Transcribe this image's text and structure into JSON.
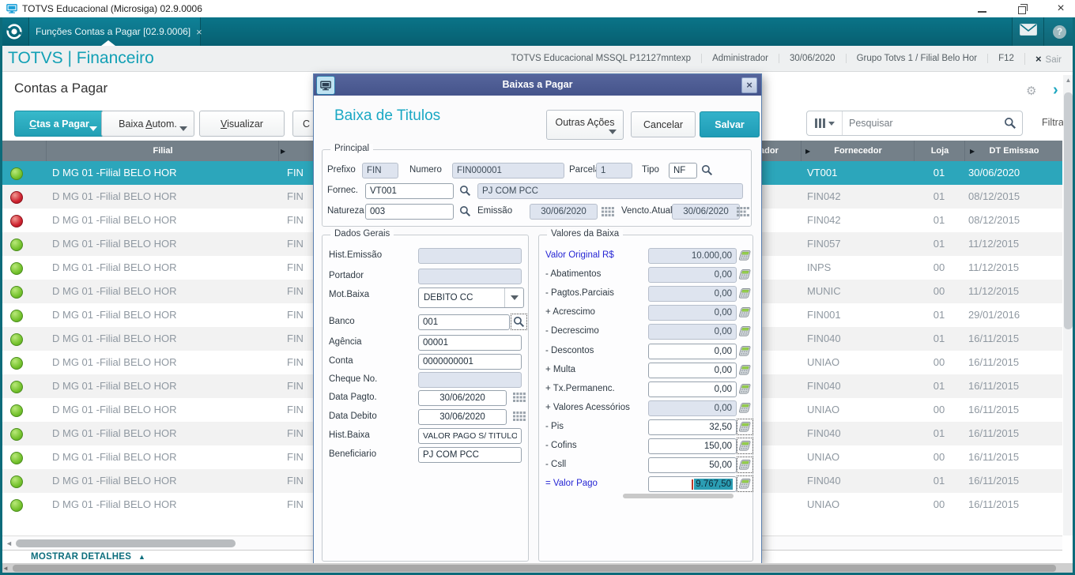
{
  "colors": {
    "accent_teal": "#2aa9bf",
    "tabbar_teal": "#086678",
    "dialog_titlebar": "#4c5c93",
    "row_selected": "#2ca6bb",
    "status_green": "#76c32e",
    "status_red": "#cf2330",
    "link_blue": "#2626d4"
  },
  "window": {
    "title": "TOTVS Educacional (Microsiga) 02.9.0006",
    "close_glyph": "×"
  },
  "tabbar": {
    "tab_label": "Funções Contas a Pagar [02.9.0006]",
    "tab_close": "×"
  },
  "header": {
    "brand": "TOTVS | Financeiro",
    "env": "TOTVS Educacional MSSQL P12127mntexp",
    "user": "Administrador",
    "date": "30/06/2020",
    "group": "Grupo Totvs 1 / Filial Belo Hor",
    "f12": "F12",
    "exit_x": "×",
    "exit": "Sair"
  },
  "toolbar": {
    "page_title": "Contas a Pagar",
    "btn_ctas": "Ctas a Pagar",
    "btn_baixa": "Baixa Autom.",
    "btn_visualizar": "Visualizar",
    "btn_partial": "C",
    "search_placeholder": "Pesquisar",
    "filter_label": "Filtrar",
    "gear_glyph": "⚙",
    "chevron_glyph": "›"
  },
  "table": {
    "col_filial": "Filial",
    "col_portador_partial": "ador",
    "col_fornecedor": "Fornecedor",
    "col_loja": "Loja",
    "col_dt_emissao": "DT Emissao",
    "sort_glyph": "▶",
    "rows": [
      {
        "status": "green",
        "selected": true,
        "filial": "D MG 01 -Filial BELO HOR",
        "prefixo": "FIN",
        "fornecedor": "VT001",
        "loja": "01",
        "dt_emissao": "30/06/2020"
      },
      {
        "status": "red",
        "filial": "D MG 01 -Filial BELO HOR",
        "prefixo": "FIN",
        "fornecedor": "FIN042",
        "loja": "01",
        "dt_emissao": "08/12/2015"
      },
      {
        "status": "red",
        "filial": "D MG 01 -Filial BELO HOR",
        "prefixo": "FIN",
        "fornecedor": "FIN042",
        "loja": "01",
        "dt_emissao": "08/12/2015"
      },
      {
        "status": "green",
        "filial": "D MG 01 -Filial BELO HOR",
        "prefixo": "FIN",
        "fornecedor": "FIN057",
        "loja": "01",
        "dt_emissao": "11/12/2015"
      },
      {
        "status": "green",
        "filial": "D MG 01 -Filial BELO HOR",
        "prefixo": "FIN",
        "fornecedor": "INPS",
        "loja": "00",
        "dt_emissao": "11/12/2015"
      },
      {
        "status": "green",
        "filial": "D MG 01 -Filial BELO HOR",
        "prefixo": "FIN",
        "fornecedor": "MUNIC",
        "loja": "00",
        "dt_emissao": "11/12/2015"
      },
      {
        "status": "green",
        "filial": "D MG 01 -Filial BELO HOR",
        "prefixo": "FIN",
        "fornecedor": "FIN001",
        "loja": "01",
        "dt_emissao": "29/01/2016"
      },
      {
        "status": "green",
        "filial": "D MG 01 -Filial BELO HOR",
        "prefixo": "FIN",
        "fornecedor": "FIN040",
        "loja": "01",
        "dt_emissao": "16/11/2015"
      },
      {
        "status": "green",
        "filial": "D MG 01 -Filial BELO HOR",
        "prefixo": "FIN",
        "fornecedor": "UNIAO",
        "loja": "00",
        "dt_emissao": "16/11/2015"
      },
      {
        "status": "green",
        "filial": "D MG 01 -Filial BELO HOR",
        "prefixo": "FIN",
        "fornecedor": "FIN040",
        "loja": "01",
        "dt_emissao": "16/11/2015"
      },
      {
        "status": "green",
        "filial": "D MG 01 -Filial BELO HOR",
        "prefixo": "FIN",
        "fornecedor": "UNIAO",
        "loja": "00",
        "dt_emissao": "16/11/2015"
      },
      {
        "status": "green",
        "filial": "D MG 01 -Filial BELO HOR",
        "prefixo": "FIN",
        "fornecedor": "FIN040",
        "loja": "01",
        "dt_emissao": "16/11/2015"
      },
      {
        "status": "green",
        "filial": "D MG 01 -Filial BELO HOR",
        "prefixo": "FIN",
        "fornecedor": "UNIAO",
        "loja": "00",
        "dt_emissao": "16/11/2015"
      },
      {
        "status": "green",
        "filial": "D MG 01 -Filial BELO HOR",
        "prefixo": "FIN",
        "fornecedor": "FIN040",
        "loja": "01",
        "dt_emissao": "16/11/2015"
      },
      {
        "status": "green",
        "filial": "D MG 01 -Filial BELO HOR",
        "prefixo": "FIN",
        "fornecedor": "UNIAO",
        "loja": "00",
        "dt_emissao": "16/11/2015"
      }
    ]
  },
  "footer": {
    "mostrar_detalhes": "MOSTRAR DETALHES",
    "up_glyph": "▲"
  },
  "dialog": {
    "title": "Baixas a Pagar",
    "close_glyph": "×",
    "heading": "Baixa de Titulos",
    "btn_outras": "Outras Ações",
    "btn_cancelar": "Cancelar",
    "btn_salvar": "Salvar",
    "principal": {
      "legend": "Principal",
      "prefixo_label": "Prefixo",
      "prefixo": "FIN",
      "numero_label": "Numero",
      "numero": "FIN000001",
      "parcela_label": "Parcela",
      "parcela": "1",
      "tipo_label": "Tipo",
      "tipo": "NF",
      "fornec_label": "Fornec.",
      "fornec": "VT001",
      "fornec_desc": "PJ COM PCC",
      "natureza_label": "Natureza",
      "natureza": "003",
      "emissao_label": "Emissão",
      "emissao": "30/06/2020",
      "vencto_label": "Vencto.Atual",
      "vencto": "30/06/2020"
    },
    "dados_gerais": {
      "legend": "Dados Gerais",
      "fields": [
        {
          "label": "Hist.Emissão",
          "value": "",
          "disabled": true
        },
        {
          "label": "Portador",
          "value": "",
          "disabled": true
        },
        {
          "label": "Mot.Baixa",
          "value": "DEBITO CC",
          "type": "select"
        },
        {
          "label": "Banco",
          "value": "001",
          "icon": "search",
          "dotted": true
        },
        {
          "label": "Agência",
          "value": "00001"
        },
        {
          "label": "Conta",
          "value": "0000000001"
        },
        {
          "label": "Cheque No.",
          "value": "",
          "disabled": true
        },
        {
          "label": "Data Pagto.",
          "value": "30/06/2020",
          "icon": "calendar",
          "center": true
        },
        {
          "label": "Data Debito",
          "value": "30/06/2020",
          "icon": "calendar",
          "center": true
        },
        {
          "label": "Hist.Baixa",
          "value": "VALOR PAGO S/ TITULO"
        },
        {
          "label": "Beneficiario",
          "value": "PJ COM PCC"
        }
      ]
    },
    "valores": {
      "legend": "Valores da Baixa",
      "rows": [
        {
          "label": "Valor Original R$",
          "value": "10.000,00",
          "disabled": true,
          "blue": true
        },
        {
          "label": "- Abatimentos",
          "value": "0,00",
          "disabled": true
        },
        {
          "label": "- Pagtos.Parciais",
          "value": "0,00",
          "disabled": true
        },
        {
          "label": "+ Acrescimo",
          "value": "0,00",
          "disabled": true
        },
        {
          "label": "- Decrescimo",
          "value": "0,00",
          "disabled": true
        },
        {
          "label": "- Descontos",
          "value": "0,00"
        },
        {
          "label": "+ Multa",
          "value": "0,00"
        },
        {
          "label": "+ Tx.Permanenc.",
          "value": "0,00"
        },
        {
          "label": "+ Valores Acessórios",
          "value": "0,00",
          "disabled": true
        },
        {
          "label": "- Pis",
          "value": "32,50",
          "dotted": true
        },
        {
          "label": "- Cofins",
          "value": "150,00",
          "dotted": true
        },
        {
          "label": "- Csll",
          "value": "50,00",
          "dotted": true
        },
        {
          "label": "= Valor Pago",
          "value": "9.767,50",
          "blue": true,
          "selected": true,
          "dotted": true
        }
      ]
    }
  }
}
